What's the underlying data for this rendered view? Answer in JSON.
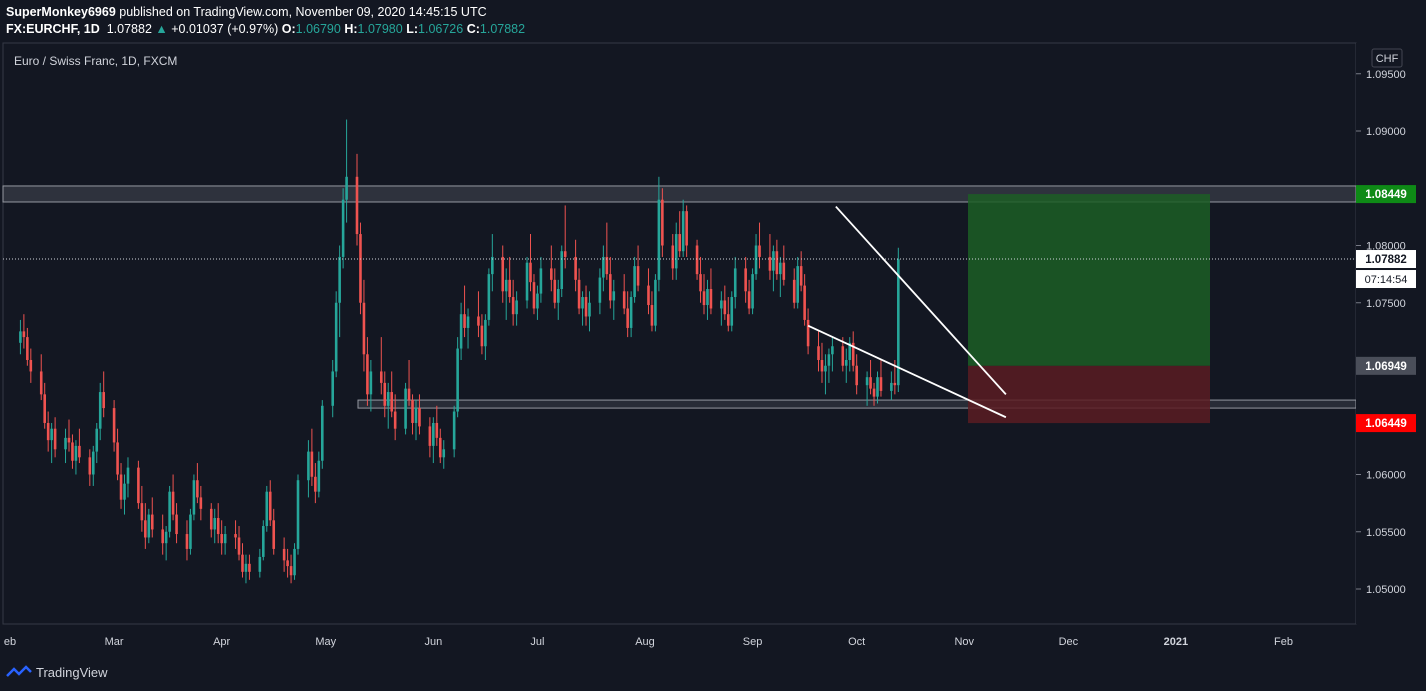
{
  "header": {
    "line1_user": "SuperMonkey6969",
    "line1_rest": " published on TradingView.com, November 09, 2020 14:45:15 UTC",
    "symbol": "FX:EURCHF, 1D",
    "last": "1.07882",
    "change": "+0.01037 (+0.97%)",
    "o_label": "O:",
    "o": "1.06790",
    "h_label": "H:",
    "h": "1.07980",
    "l_label": "L:",
    "l": "1.06726",
    "c_label": "C:",
    "c": "1.07882"
  },
  "legend": "Euro / Swiss Franc, 1D, FXCM",
  "currency": "CHF",
  "footer_brand": "TradingView",
  "colors": {
    "up": "#26a69a",
    "down": "#ef5350",
    "background": "#131722",
    "target": "#1c5e24",
    "stop": "#5b1c22"
  },
  "chart_data": {
    "type": "candlestick",
    "y_ticks": [
      "1.09500",
      "1.09000",
      "1.08000",
      "1.07500",
      "1.06000",
      "1.05500",
      "1.05000"
    ],
    "ylim": [
      1.042,
      1.0975
    ],
    "x_ticks": [
      "eb",
      "Mar",
      "Apr",
      "May",
      "Jun",
      "Jul",
      "Aug",
      "Sep",
      "Oct",
      "Nov",
      "Dec",
      "2021",
      "Feb"
    ],
    "price_labels": [
      {
        "value": 1.08449,
        "text": "1.08449",
        "kind": "target"
      },
      {
        "value": 1.07882,
        "text": "1.07882",
        "kind": "last"
      },
      {
        "value": 1.06949,
        "text": "1.06949",
        "kind": "entry"
      },
      {
        "value": 1.06449,
        "text": "1.06449",
        "kind": "stop"
      }
    ],
    "countdown": "07:14:54",
    "zones": [
      {
        "from": 1.0838,
        "to": 1.0852
      },
      {
        "from": 1.0658,
        "to": 1.0665
      }
    ],
    "candles": [
      [
        1.0715,
        1.0735,
        1.0705,
        1.0725
      ],
      [
        1.0725,
        1.074,
        1.071,
        1.072
      ],
      [
        1.072,
        1.0728,
        1.0695,
        1.07
      ],
      [
        1.07,
        1.071,
        1.068,
        1.069
      ],
      [
        1.069,
        1.0705,
        1.0665,
        1.067
      ],
      [
        1.067,
        1.068,
        1.064,
        1.0645
      ],
      [
        1.0645,
        1.0655,
        1.062,
        1.063
      ],
      [
        1.063,
        1.0645,
        1.061,
        1.064
      ],
      [
        1.064,
        1.065,
        1.0615,
        1.0622
      ],
      [
        1.0622,
        1.064,
        1.061,
        1.0632
      ],
      [
        1.0632,
        1.0648,
        1.062,
        1.0628
      ],
      [
        1.0628,
        1.0635,
        1.0605,
        1.0612
      ],
      [
        1.0612,
        1.063,
        1.06,
        1.0625
      ],
      [
        1.0625,
        1.064,
        1.061,
        1.0615
      ],
      [
        1.0615,
        1.0622,
        1.059,
        1.06
      ],
      [
        1.06,
        1.0625,
        1.059,
        1.062
      ],
      [
        1.062,
        1.0645,
        1.061,
        1.064
      ],
      [
        1.064,
        1.068,
        1.063,
        1.0672
      ],
      [
        1.0672,
        1.069,
        1.065,
        1.0658
      ],
      [
        1.0658,
        1.0665,
        1.062,
        1.0628
      ],
      [
        1.0628,
        1.064,
        1.0595,
        1.06
      ],
      [
        1.06,
        1.061,
        1.057,
        1.0578
      ],
      [
        1.0578,
        1.06,
        1.0565,
        1.0592
      ],
      [
        1.0592,
        1.0615,
        1.058,
        1.0606
      ],
      [
        1.0606,
        1.0612,
        1.057,
        1.0575
      ],
      [
        1.0575,
        1.059,
        1.055,
        1.056
      ],
      [
        1.056,
        1.0575,
        1.0535,
        1.0545
      ],
      [
        1.0545,
        1.057,
        1.054,
        1.0565
      ],
      [
        1.0565,
        1.058,
        1.0545,
        1.0552
      ],
      [
        1.0552,
        1.0565,
        1.053,
        1.054
      ],
      [
        1.054,
        1.0555,
        1.0525,
        1.055
      ],
      [
        1.055,
        1.059,
        1.0545,
        1.0585
      ],
      [
        1.0585,
        1.06,
        1.056,
        1.0565
      ],
      [
        1.0565,
        1.0575,
        1.054,
        1.0548
      ],
      [
        1.0548,
        1.056,
        1.0525,
        1.0535
      ],
      [
        1.0535,
        1.057,
        1.053,
        1.0565
      ],
      [
        1.0565,
        1.06,
        1.056,
        1.0595
      ],
      [
        1.0595,
        1.061,
        1.0575,
        1.058
      ],
      [
        1.058,
        1.059,
        1.056,
        1.057
      ],
      [
        1.057,
        1.0575,
        1.0545,
        1.0552
      ],
      [
        1.0552,
        1.057,
        1.054,
        1.0562
      ],
      [
        1.0562,
        1.0575,
        1.054,
        1.0548
      ],
      [
        1.0548,
        1.056,
        1.053,
        1.054
      ],
      [
        1.054,
        1.0555,
        1.053,
        1.0548
      ],
      [
        1.0548,
        1.056,
        1.0535,
        1.0545
      ],
      [
        1.0545,
        1.0555,
        1.0525,
        1.053
      ],
      [
        1.053,
        1.054,
        1.051,
        1.0515
      ],
      [
        1.0515,
        1.053,
        1.0505,
        1.0522
      ],
      [
        1.0522,
        1.053,
        1.0508,
        1.0515
      ],
      [
        1.0515,
        1.0535,
        1.051,
        1.0528
      ],
      [
        1.0528,
        1.056,
        1.0525,
        1.0555
      ],
      [
        1.0555,
        1.059,
        1.055,
        1.0585
      ],
      [
        1.0585,
        1.0595,
        1.0555,
        1.056
      ],
      [
        1.056,
        1.057,
        1.053,
        1.0535
      ],
      [
        1.0535,
        1.0545,
        1.0515,
        1.0525
      ],
      [
        1.0525,
        1.0535,
        1.051,
        1.052
      ],
      [
        1.052,
        1.053,
        1.0505,
        1.0512
      ],
      [
        1.0512,
        1.054,
        1.0508,
        1.0535
      ],
      [
        1.0535,
        1.06,
        1.053,
        1.0595
      ],
      [
        1.0595,
        1.063,
        1.058,
        1.062
      ],
      [
        1.062,
        1.064,
        1.059,
        1.0598
      ],
      [
        1.0598,
        1.061,
        1.0575,
        1.0585
      ],
      [
        1.0585,
        1.062,
        1.058,
        1.0612
      ],
      [
        1.0612,
        1.0665,
        1.0605,
        1.066
      ],
      [
        1.066,
        1.07,
        1.065,
        1.069
      ],
      [
        1.069,
        1.076,
        1.0685,
        1.075
      ],
      [
        1.075,
        1.08,
        1.072,
        1.079
      ],
      [
        1.079,
        1.085,
        1.078,
        1.084
      ],
      [
        1.084,
        1.091,
        1.082,
        1.086
      ],
      [
        1.086,
        1.088,
        1.08,
        1.081
      ],
      [
        1.081,
        1.082,
        1.074,
        1.075
      ],
      [
        1.075,
        1.077,
        1.069,
        1.0705
      ],
      [
        1.0705,
        1.072,
        1.066,
        1.067
      ],
      [
        1.067,
        1.07,
        1.0655,
        1.069
      ],
      [
        1.069,
        1.072,
        1.067,
        1.068
      ],
      [
        1.068,
        1.069,
        1.065,
        1.066
      ],
      [
        1.066,
        1.068,
        1.064,
        1.0672
      ],
      [
        1.0672,
        1.069,
        1.065,
        1.0655
      ],
      [
        1.0655,
        1.067,
        1.063,
        1.064
      ],
      [
        1.064,
        1.068,
        1.0635,
        1.0675
      ],
      [
        1.0675,
        1.07,
        1.066,
        1.0665
      ],
      [
        1.0665,
        1.067,
        1.0635,
        1.0645
      ],
      [
        1.0645,
        1.0665,
        1.063,
        1.0658
      ],
      [
        1.0658,
        1.067,
        1.0635,
        1.0642
      ],
      [
        1.0642,
        1.065,
        1.0615,
        1.0625
      ],
      [
        1.0625,
        1.065,
        1.061,
        1.0645
      ],
      [
        1.0645,
        1.066,
        1.0625,
        1.0632
      ],
      [
        1.0632,
        1.064,
        1.061,
        1.0615
      ],
      [
        1.0615,
        1.063,
        1.0605,
        1.0622
      ],
      [
        1.0622,
        1.066,
        1.0615,
        1.0655
      ],
      [
        1.0655,
        1.072,
        1.065,
        1.071
      ],
      [
        1.071,
        1.075,
        1.07,
        1.074
      ],
      [
        1.074,
        1.0765,
        1.072,
        1.0728
      ],
      [
        1.0728,
        1.0745,
        1.071,
        1.0738
      ],
      [
        1.0738,
        1.076,
        1.072,
        1.073
      ],
      [
        1.073,
        1.074,
        1.0705,
        1.0712
      ],
      [
        1.0712,
        1.074,
        1.07,
        1.0735
      ],
      [
        1.0735,
        1.078,
        1.073,
        1.0775
      ],
      [
        1.0775,
        1.081,
        1.076,
        1.079
      ],
      [
        1.079,
        1.08,
        1.075,
        1.076
      ],
      [
        1.076,
        1.078,
        1.0735,
        1.077
      ],
      [
        1.077,
        1.079,
        1.075,
        1.0755
      ],
      [
        1.0755,
        1.077,
        1.073,
        1.074
      ],
      [
        1.074,
        1.076,
        1.073,
        1.0752
      ],
      [
        1.0752,
        1.079,
        1.0745,
        1.0785
      ],
      [
        1.0785,
        1.081,
        1.076,
        1.0768
      ],
      [
        1.0768,
        1.0775,
        1.074,
        1.0745
      ],
      [
        1.0745,
        1.0765,
        1.0735,
        1.0758
      ],
      [
        1.0758,
        1.079,
        1.075,
        1.078
      ],
      [
        1.078,
        1.08,
        1.076,
        1.077
      ],
      [
        1.077,
        1.078,
        1.0745,
        1.075
      ],
      [
        1.075,
        1.077,
        1.0735,
        1.0762
      ],
      [
        1.0762,
        1.08,
        1.0755,
        1.0795
      ],
      [
        1.0795,
        1.0835,
        1.078,
        1.079
      ],
      [
        1.079,
        1.0805,
        1.076,
        1.077
      ],
      [
        1.077,
        1.078,
        1.074,
        1.0745
      ],
      [
        1.0745,
        1.076,
        1.073,
        1.0755
      ],
      [
        1.0755,
        1.0765,
        1.073,
        1.0738
      ],
      [
        1.0738,
        1.076,
        1.0725,
        1.075
      ],
      [
        1.075,
        1.078,
        1.074,
        1.0772
      ],
      [
        1.0772,
        1.08,
        1.076,
        1.079
      ],
      [
        1.079,
        1.082,
        1.077,
        1.0775
      ],
      [
        1.0775,
        1.079,
        1.0745,
        1.0752
      ],
      [
        1.0752,
        1.077,
        1.0735,
        1.076
      ],
      [
        1.076,
        1.0775,
        1.074,
        1.0745
      ],
      [
        1.0745,
        1.076,
        1.072,
        1.0728
      ],
      [
        1.0728,
        1.076,
        1.072,
        1.0755
      ],
      [
        1.0755,
        1.079,
        1.075,
        1.0782
      ],
      [
        1.0782,
        1.08,
        1.076,
        1.0765
      ],
      [
        1.0765,
        1.078,
        1.074,
        1.0748
      ],
      [
        1.0748,
        1.076,
        1.0725,
        1.073
      ],
      [
        1.073,
        1.0775,
        1.0725,
        1.077
      ],
      [
        1.077,
        1.086,
        1.076,
        1.084
      ],
      [
        1.084,
        1.085,
        1.079,
        1.08
      ],
      [
        1.08,
        1.081,
        1.077,
        1.078
      ],
      [
        1.078,
        1.082,
        1.077,
        1.081
      ],
      [
        1.081,
        1.083,
        1.079,
        1.0795
      ],
      [
        1.0795,
        1.084,
        1.079,
        1.083
      ],
      [
        1.083,
        1.0835,
        1.079,
        1.08
      ],
      [
        1.08,
        1.0805,
        1.077,
        1.0775
      ],
      [
        1.0775,
        1.079,
        1.075,
        1.076
      ],
      [
        1.076,
        1.0775,
        1.074,
        1.0748
      ],
      [
        1.0748,
        1.077,
        1.0735,
        1.0762
      ],
      [
        1.0762,
        1.078,
        1.074,
        1.0745
      ],
      [
        1.0745,
        1.076,
        1.073,
        1.0752
      ],
      [
        1.0752,
        1.0765,
        1.0735,
        1.074
      ],
      [
        1.074,
        1.0755,
        1.0725,
        1.073
      ],
      [
        1.073,
        1.076,
        1.0725,
        1.0755
      ],
      [
        1.0755,
        1.079,
        1.0745,
        1.078
      ],
      [
        1.078,
        1.079,
        1.075,
        1.076
      ],
      [
        1.076,
        1.077,
        1.074,
        1.0745
      ],
      [
        1.0745,
        1.078,
        1.074,
        1.0775
      ],
      [
        1.0775,
        1.081,
        1.077,
        1.08
      ],
      [
        1.08,
        1.082,
        1.078,
        1.079
      ],
      [
        1.079,
        1.081,
        1.077,
        1.0778
      ],
      [
        1.0778,
        1.08,
        1.076,
        1.0795
      ],
      [
        1.0795,
        1.0805,
        1.077,
        1.0775
      ],
      [
        1.0775,
        1.079,
        1.0755,
        1.0785
      ],
      [
        1.0785,
        1.08,
        1.0765,
        1.077
      ],
      [
        1.077,
        1.078,
        1.0745,
        1.075
      ],
      [
        1.075,
        1.079,
        1.0745,
        1.0782
      ],
      [
        1.0782,
        1.0795,
        1.076,
        1.0765
      ],
      [
        1.0765,
        1.0775,
        1.073,
        1.0735
      ],
      [
        1.0735,
        1.0745,
        1.0705,
        1.0712
      ],
      [
        1.0712,
        1.0725,
        1.069,
        1.07
      ],
      [
        1.07,
        1.0715,
        1.068,
        1.069
      ],
      [
        1.069,
        1.0705,
        1.067,
        1.0695
      ],
      [
        1.0695,
        1.071,
        1.068,
        1.0705
      ],
      [
        1.0705,
        1.072,
        1.069,
        1.0712
      ],
      [
        1.0712,
        1.072,
        1.069,
        1.0695
      ],
      [
        1.0695,
        1.071,
        1.068,
        1.07
      ],
      [
        1.07,
        1.072,
        1.069,
        1.0715
      ],
      [
        1.0715,
        1.0725,
        1.069,
        1.0695
      ],
      [
        1.0695,
        1.0705,
        1.067,
        1.0678
      ],
      [
        1.0678,
        1.069,
        1.066,
        1.0685
      ],
      [
        1.0685,
        1.07,
        1.067,
        1.0675
      ],
      [
        1.0675,
        1.068,
        1.066,
        1.0668
      ],
      [
        1.0668,
        1.069,
        1.0662,
        1.0685
      ],
      [
        1.0685,
        1.07,
        1.0668,
        1.0673
      ],
      [
        1.0673,
        1.069,
        1.0665,
        1.068
      ],
      [
        1.068,
        1.07,
        1.067,
        1.0678
      ],
      [
        1.0678,
        1.0798,
        1.0672,
        1.0788
      ]
    ],
    "trendlines": [
      {
        "from": [
          "Sep 25",
          1.0834
        ],
        "to": [
          "Nov 13",
          1.067
        ]
      },
      {
        "from": [
          "Sep 17",
          1.073
        ],
        "to": [
          "Nov 13",
          1.065
        ]
      }
    ],
    "position": {
      "entry": 1.06949,
      "target": 1.08449,
      "stop": 1.06449
    }
  }
}
